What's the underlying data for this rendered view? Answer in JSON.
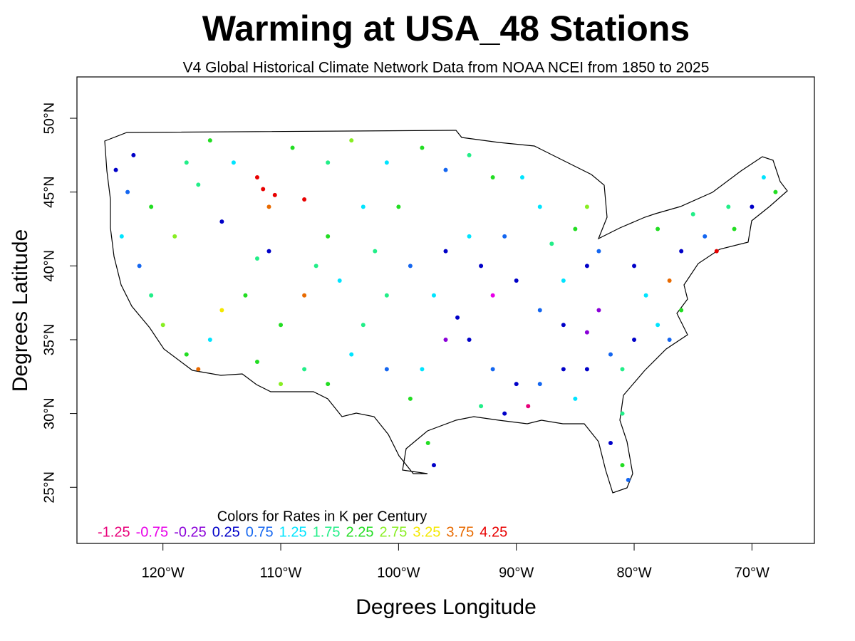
{
  "chart_data": {
    "type": "scatter",
    "title": "Warming at USA_48 Stations",
    "subtitle": "V4 Global Historical Climate Network Data from NOAA NCEI from 1850 to 2025",
    "x_label": "Degrees Longitude",
    "y_label": "Degrees Latitude",
    "xlim": [
      -127.3,
      -64.7
    ],
    "ylim": [
      21.2,
      52.8
    ],
    "xticks": [
      {
        "value": -120,
        "label": "120°W"
      },
      {
        "value": -110,
        "label": "110°W"
      },
      {
        "value": -100,
        "label": "100°W"
      },
      {
        "value": -90,
        "label": "90°W"
      },
      {
        "value": -80,
        "label": "80°W"
      },
      {
        "value": -70,
        "label": "70°W"
      }
    ],
    "yticks": [
      {
        "value": 25,
        "label": "25°N"
      },
      {
        "value": 30,
        "label": "30°N"
      },
      {
        "value": 35,
        "label": "35°N"
      },
      {
        "value": 40,
        "label": "40°N"
      },
      {
        "value": 45,
        "label": "45°N"
      },
      {
        "value": 50,
        "label": "50°N"
      }
    ],
    "legend": {
      "title": "Colors for Rates in K per Century",
      "values": [
        -1.25,
        -0.75,
        -0.25,
        0.25,
        0.75,
        1.25,
        1.75,
        2.25,
        2.75,
        3.25,
        3.75,
        4.25
      ],
      "colors": [
        "#e8007a",
        "#e800e8",
        "#8a00d8",
        "#0000c8",
        "#1466f0",
        "#00e4ff",
        "#22ee88",
        "#22dd22",
        "#88ee22",
        "#f4e800",
        "#e86a00",
        "#e80000"
      ]
    },
    "x": [
      -122.5,
      -123,
      -121,
      -118,
      -116,
      -114,
      -112,
      -111.5,
      -110.5,
      -108,
      -111,
      -109,
      -106,
      -104,
      -101,
      -98,
      -96,
      -94,
      -92,
      -89.5,
      -122,
      -121,
      -120,
      -118,
      -117,
      -116,
      -115,
      -113,
      -112,
      -111,
      -110,
      -108,
      -107,
      -106,
      -105,
      -112,
      -110,
      -108,
      -106,
      -104,
      -103,
      -101,
      -99,
      -97.5,
      -97,
      -98,
      -96,
      -95,
      -97,
      -99,
      -96,
      -94,
      -93,
      -91,
      -90,
      -92,
      -94,
      -92,
      -90,
      -93,
      -91,
      -89,
      -88,
      -86,
      -85,
      -84,
      -82,
      -81,
      -82,
      -81,
      -80.5,
      -84,
      -86,
      -88,
      -86,
      -84,
      -87,
      -85,
      -84,
      -88,
      -83,
      -80,
      -79,
      -77,
      -76,
      -78,
      -75,
      -74,
      -73,
      -71.5,
      -72,
      -70,
      -69,
      -68,
      -76,
      -78,
      -80,
      -81,
      -77,
      -83,
      -123.5,
      -119,
      -115,
      -117,
      -103,
      -100,
      -101,
      -102,
      -124
    ],
    "y": [
      47.5,
      45,
      44,
      47,
      48.5,
      47,
      46,
      45.2,
      44.8,
      44.5,
      44,
      48,
      47,
      48.5,
      47,
      48,
      46.5,
      47.5,
      46,
      46,
      40,
      38,
      36,
      34,
      33,
      35,
      37,
      38,
      40.5,
      41,
      36,
      38,
      40,
      42,
      39,
      33.5,
      32,
      33,
      32,
      34,
      36,
      33,
      31,
      28,
      26.5,
      33,
      35,
      36.5,
      38,
      40,
      41,
      42,
      40,
      42,
      39,
      38,
      35,
      33,
      32,
      30.5,
      30,
      30.5,
      32,
      33,
      31,
      33,
      34,
      30,
      28,
      26.5,
      25.5,
      35.5,
      36,
      37,
      39,
      40,
      41.5,
      42.5,
      44,
      44,
      41,
      40,
      38,
      39,
      41,
      42.5,
      43.5,
      42,
      41,
      42.5,
      44,
      44,
      46,
      45,
      37,
      36,
      35,
      33,
      35,
      37,
      42,
      42,
      43,
      45.5,
      44,
      44,
      38,
      41,
      46.5
    ],
    "values": [
      0.25,
      0.75,
      2.25,
      1.75,
      2.25,
      1.25,
      4.25,
      4.25,
      4.25,
      4.25,
      3.75,
      2.25,
      1.75,
      2.75,
      1.25,
      2.25,
      0.75,
      1.75,
      2.25,
      1.25,
      0.75,
      1.75,
      2.75,
      2.25,
      3.75,
      1.25,
      3.25,
      2.25,
      1.75,
      0.25,
      2.25,
      3.75,
      1.75,
      2.25,
      1.25,
      2.25,
      2.75,
      1.75,
      2.25,
      1.25,
      1.75,
      0.75,
      2.25,
      2.25,
      0.25,
      1.25,
      -0.25,
      0.25,
      1.25,
      0.75,
      0.25,
      1.25,
      0.25,
      0.75,
      0.25,
      -0.75,
      0.25,
      0.75,
      0.25,
      1.75,
      0.25,
      -1.25,
      0.75,
      0.25,
      1.25,
      0.25,
      0.75,
      1.75,
      0.25,
      2.25,
      0.75,
      -0.25,
      0.25,
      0.75,
      1.25,
      0.25,
      1.75,
      2.25,
      2.75,
      1.25,
      0.75,
      0.25,
      1.25,
      3.75,
      0.25,
      2.25,
      1.75,
      0.75,
      4.25,
      2.25,
      1.75,
      0.25,
      1.25,
      2.25,
      2.25,
      1.25,
      0.25,
      1.75,
      0.75,
      -0.25,
      1.25,
      2.75,
      0.25,
      1.75,
      1.25,
      2.25,
      1.75,
      1.75,
      0.25
    ]
  }
}
